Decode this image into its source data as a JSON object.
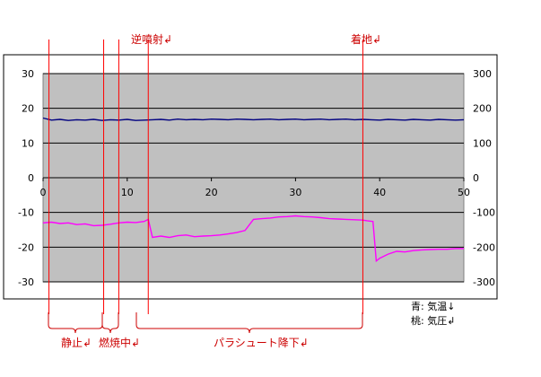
{
  "chart_data": {
    "type": "line",
    "x_range": [
      0,
      50
    ],
    "x_ticks": [
      0,
      10,
      20,
      30,
      40,
      50
    ],
    "y_left_range": [
      -30,
      30
    ],
    "y_left_ticks": [
      30,
      20,
      10,
      0,
      -10,
      -20,
      -30
    ],
    "y_right_range": [
      -300,
      300
    ],
    "y_right_ticks": [
      300,
      200,
      100,
      0,
      -100,
      -200,
      -300
    ],
    "grid": true,
    "plot_background": "#c0c0c0",
    "series": [
      {
        "name": "気温",
        "axis": "left",
        "color": "#000080",
        "points": [
          [
            0,
            17.2
          ],
          [
            1,
            16.6
          ],
          [
            2,
            16.8
          ],
          [
            3,
            16.5
          ],
          [
            4,
            16.7
          ],
          [
            5,
            16.6
          ],
          [
            6,
            16.8
          ],
          [
            7,
            16.5
          ],
          [
            8,
            16.7
          ],
          [
            9,
            16.6
          ],
          [
            10,
            16.8
          ],
          [
            11,
            16.5
          ],
          [
            12,
            16.6
          ],
          [
            13,
            16.7
          ],
          [
            14,
            16.8
          ],
          [
            15,
            16.6
          ],
          [
            16,
            16.9
          ],
          [
            17,
            16.7
          ],
          [
            18,
            16.8
          ],
          [
            19,
            16.7
          ],
          [
            20,
            16.9
          ],
          [
            21,
            16.8
          ],
          [
            22,
            16.7
          ],
          [
            23,
            16.9
          ],
          [
            24,
            16.8
          ],
          [
            25,
            16.7
          ],
          [
            26,
            16.8
          ],
          [
            27,
            16.9
          ],
          [
            28,
            16.7
          ],
          [
            29,
            16.8
          ],
          [
            30,
            16.9
          ],
          [
            31,
            16.7
          ],
          [
            32,
            16.8
          ],
          [
            33,
            16.9
          ],
          [
            34,
            16.7
          ],
          [
            35,
            16.8
          ],
          [
            36,
            16.9
          ],
          [
            37,
            16.7
          ],
          [
            38,
            16.8
          ],
          [
            39,
            16.7
          ],
          [
            40,
            16.6
          ],
          [
            41,
            16.8
          ],
          [
            42,
            16.7
          ],
          [
            43,
            16.6
          ],
          [
            44,
            16.8
          ],
          [
            45,
            16.7
          ],
          [
            46,
            16.6
          ],
          [
            47,
            16.8
          ],
          [
            48,
            16.7
          ],
          [
            49,
            16.6
          ],
          [
            50,
            16.7
          ]
        ]
      },
      {
        "name": "気圧",
        "axis": "right",
        "color": "#ff00ff",
        "points": [
          [
            0,
            -130
          ],
          [
            1,
            -128
          ],
          [
            2,
            -132
          ],
          [
            3,
            -130
          ],
          [
            4,
            -135
          ],
          [
            5,
            -133
          ],
          [
            6,
            -138
          ],
          [
            7,
            -137
          ],
          [
            8,
            -134
          ],
          [
            9,
            -130
          ],
          [
            10,
            -128
          ],
          [
            11,
            -129
          ],
          [
            12,
            -126
          ],
          [
            12.5,
            -120
          ],
          [
            13,
            -172
          ],
          [
            14,
            -168
          ],
          [
            15,
            -172
          ],
          [
            16,
            -167
          ],
          [
            17,
            -165
          ],
          [
            18,
            -170
          ],
          [
            19,
            -168
          ],
          [
            20,
            -167
          ],
          [
            21,
            -165
          ],
          [
            22,
            -162
          ],
          [
            23,
            -158
          ],
          [
            24,
            -152
          ],
          [
            25,
            -120
          ],
          [
            26,
            -118
          ],
          [
            27,
            -116
          ],
          [
            28,
            -113
          ],
          [
            29,
            -112
          ],
          [
            30,
            -110
          ],
          [
            31,
            -112
          ],
          [
            32,
            -113
          ],
          [
            33,
            -115
          ],
          [
            34,
            -118
          ],
          [
            35,
            -119
          ],
          [
            36,
            -120
          ],
          [
            37,
            -121
          ],
          [
            38,
            -122
          ],
          [
            38.5,
            -124
          ],
          [
            39.2,
            -126
          ],
          [
            39.6,
            -240
          ],
          [
            40,
            -232
          ],
          [
            41,
            -220
          ],
          [
            42,
            -212
          ],
          [
            43,
            -214
          ],
          [
            44,
            -210
          ],
          [
            45,
            -208
          ],
          [
            46,
            -207
          ],
          [
            47,
            -206
          ],
          [
            48,
            -206
          ],
          [
            49,
            -204
          ],
          [
            50,
            -204
          ]
        ]
      }
    ],
    "event_lines": [
      0.7,
      7.2,
      9.0,
      12.5,
      38.0
    ],
    "annotations": {
      "reverse_jet": "逆噴射↲",
      "landing": "着地↲",
      "rest": "静止↲",
      "burn": "燃焼中↲",
      "parachute": "パラシュート降下↲"
    },
    "legend": {
      "blue": "青: 気温↓",
      "pink": "桃: 気圧↲"
    }
  }
}
